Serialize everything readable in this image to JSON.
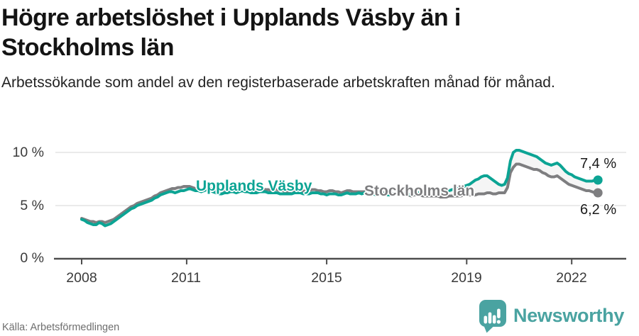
{
  "header": {
    "title": "Högre arbetslöshet i Upplands Väsby än i Stockholms län",
    "subtitle": "Arbetssökande som andel av den registerbaserade arbetskraften månad för månad."
  },
  "chart_data": {
    "type": "line",
    "title": "Högre arbetslöshet i Upplands Väsby än i Stockholms län",
    "unit": "%",
    "frequency": "monthly",
    "x_start": "2008-01",
    "x_end": "2022-10",
    "grid": true,
    "legend_position": "inline-on-line",
    "ylim": [
      0,
      10.5
    ],
    "y_ticks": [
      10,
      5,
      0
    ],
    "y_tick_labels": [
      "10 %",
      "5 %",
      "0 %"
    ],
    "x_ticks": [
      2008,
      2011,
      2015,
      2019,
      2022
    ],
    "x_tick_labels": [
      "2008",
      "2011",
      "2015",
      "2019",
      "2022"
    ],
    "series": [
      {
        "name": "Upplands Väsby",
        "color": "#0ca494",
        "end_value": 7.4,
        "end_label": "7,4 %",
        "values": [
          3.7,
          3.6,
          3.4,
          3.3,
          3.2,
          3.2,
          3.4,
          3.3,
          3.1,
          3.2,
          3.3,
          3.5,
          3.7,
          3.9,
          4.1,
          4.3,
          4.5,
          4.7,
          4.8,
          5.0,
          5.1,
          5.2,
          5.3,
          5.4,
          5.5,
          5.7,
          5.8,
          6.0,
          6.1,
          6.2,
          6.3,
          6.3,
          6.2,
          6.3,
          6.4,
          6.4,
          6.5,
          6.6,
          6.5,
          6.4,
          6.4,
          6.3,
          6.4,
          6.5,
          6.4,
          6.3,
          6.2,
          6.1,
          6.1,
          6.2,
          6.2,
          6.3,
          6.3,
          6.2,
          6.3,
          6.4,
          6.3,
          6.3,
          6.2,
          6.2,
          6.2,
          6.3,
          6.3,
          6.3,
          6.2,
          6.2,
          6.2,
          6.2,
          6.1,
          6.1,
          6.1,
          6.1,
          6.1,
          6.2,
          6.2,
          6.2,
          6.1,
          6.1,
          6.1,
          6.2,
          6.2,
          6.2,
          6.1,
          6.1,
          6.0,
          6.1,
          6.1,
          6.1,
          6.0,
          6.0,
          6.1,
          6.2,
          6.1,
          6.1,
          6.1,
          6.2,
          6.1,
          6.2,
          6.2,
          6.1,
          6.1,
          6.0,
          6.1,
          6.1,
          6.1,
          6.0,
          6.0,
          6.1,
          6.1,
          6.1,
          6.2,
          6.1,
          6.1,
          6.0,
          6.1,
          6.2,
          6.2,
          6.2,
          6.2,
          6.3,
          6.3,
          6.4,
          6.4,
          6.3,
          6.3,
          6.3,
          6.4,
          6.5,
          6.6,
          6.6,
          6.7,
          6.8,
          6.9,
          7.0,
          7.2,
          7.4,
          7.5,
          7.7,
          7.8,
          7.8,
          7.6,
          7.4,
          7.2,
          7.0,
          6.9,
          7.0,
          7.6,
          9.2,
          10.0,
          10.2,
          10.2,
          10.1,
          10.0,
          9.9,
          9.8,
          9.7,
          9.6,
          9.4,
          9.2,
          9.0,
          8.9,
          8.8,
          8.9,
          9.0,
          8.8,
          8.5,
          8.2,
          8.0,
          7.9,
          7.7,
          7.6,
          7.5,
          7.4,
          7.3,
          7.3,
          7.3,
          7.4,
          7.4
        ]
      },
      {
        "name": "Stockholms län",
        "color": "#7e7e80",
        "end_value": 6.2,
        "end_label": "6,2 %",
        "values": [
          3.8,
          3.7,
          3.6,
          3.5,
          3.5,
          3.4,
          3.5,
          3.5,
          3.4,
          3.5,
          3.6,
          3.7,
          3.9,
          4.1,
          4.3,
          4.5,
          4.7,
          4.9,
          5.0,
          5.2,
          5.3,
          5.4,
          5.5,
          5.6,
          5.7,
          5.9,
          6.0,
          6.2,
          6.3,
          6.4,
          6.5,
          6.6,
          6.6,
          6.7,
          6.7,
          6.8,
          6.8,
          6.8,
          6.7,
          6.6,
          6.6,
          6.5,
          6.6,
          6.7,
          6.6,
          6.6,
          6.5,
          6.4,
          6.4,
          6.5,
          6.5,
          6.6,
          6.5,
          6.5,
          6.6,
          6.6,
          6.5,
          6.5,
          6.4,
          6.4,
          6.5,
          6.5,
          6.6,
          6.5,
          6.5,
          6.4,
          6.5,
          6.5,
          6.4,
          6.4,
          6.3,
          6.3,
          6.4,
          6.4,
          6.5,
          6.4,
          6.4,
          6.3,
          6.4,
          6.5,
          6.5,
          6.4,
          6.4,
          6.3,
          6.3,
          6.4,
          6.4,
          6.3,
          6.3,
          6.2,
          6.3,
          6.4,
          6.4,
          6.3,
          6.3,
          6.3,
          6.3,
          6.3,
          6.3,
          6.2,
          6.2,
          6.1,
          6.2,
          6.2,
          6.2,
          6.1,
          6.1,
          6.1,
          6.1,
          6.1,
          6.1,
          6.0,
          6.0,
          5.9,
          6.0,
          6.0,
          6.0,
          5.9,
          5.9,
          5.9,
          5.9,
          5.9,
          5.9,
          5.8,
          5.8,
          5.8,
          5.9,
          5.9,
          5.9,
          5.9,
          5.9,
          6.0,
          6.0,
          6.0,
          6.0,
          6.0,
          6.1,
          6.1,
          6.1,
          6.2,
          6.2,
          6.1,
          6.1,
          6.2,
          6.2,
          6.2,
          6.7,
          8.1,
          8.6,
          8.9,
          8.9,
          8.8,
          8.7,
          8.6,
          8.5,
          8.4,
          8.4,
          8.3,
          8.1,
          8.0,
          7.8,
          7.7,
          7.7,
          7.8,
          7.6,
          7.4,
          7.2,
          7.0,
          6.9,
          6.8,
          6.7,
          6.6,
          6.5,
          6.4,
          6.4,
          6.3,
          6.2,
          6.2
        ]
      }
    ]
  },
  "footer": {
    "source": "Källa: Arbetsförmedlingen",
    "brand": "Newsworthy"
  },
  "colors": {
    "accent_teal": "#0ca494",
    "series_gray": "#7e7e80",
    "logo_teal": "#4aa3a1",
    "diff_band": "#ececec",
    "grid": "#e3e3e3",
    "axis": "#4d4d4d"
  }
}
